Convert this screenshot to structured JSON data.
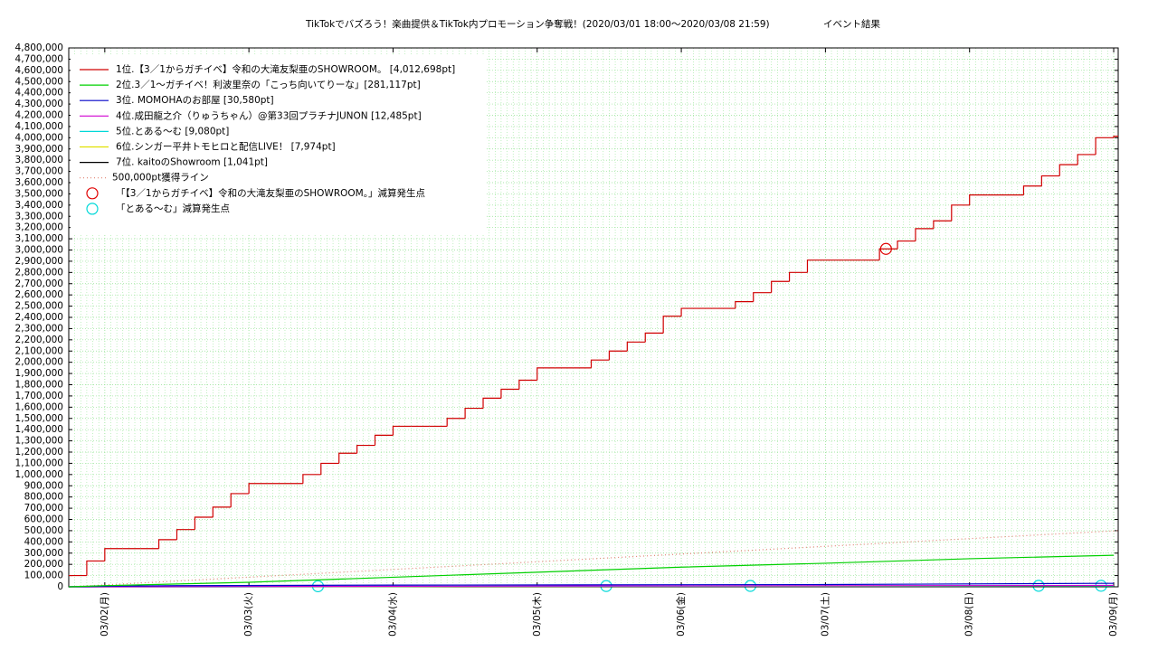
{
  "chart_data": {
    "type": "line",
    "title": "TikTokでバズろう！楽曲提供＆TikTok内プロモーション争奪戦！(2020/03/01 18:00～2020/03/08 21:59)",
    "subtitle": "イベント結果",
    "xlim": [
      "2020-03-01T18:00",
      "2020-03-09T00:45"
    ],
    "xticks": [
      {
        "value": "2020-03-02T00:00",
        "label": "03/02(月)"
      },
      {
        "value": "2020-03-03T00:00",
        "label": "03/03(火)"
      },
      {
        "value": "2020-03-04T00:00",
        "label": "03/04(水)"
      },
      {
        "value": "2020-03-05T00:00",
        "label": "03/05(木)"
      },
      {
        "value": "2020-03-06T00:00",
        "label": "03/06(金)"
      },
      {
        "value": "2020-03-07T00:00",
        "label": "03/07(土)"
      },
      {
        "value": "2020-03-08T00:00",
        "label": "03/08(日)"
      },
      {
        "value": "2020-03-09T00:00",
        "label": "03/09(月)"
      }
    ],
    "ylim": [
      0,
      4800000
    ],
    "yticks": [
      0,
      {
        "value": 100000,
        "label": "100,000"
      },
      {
        "value": 200000,
        "label": "200,000"
      },
      {
        "value": 300000,
        "label": "300,000"
      },
      {
        "value": 400000,
        "label": "400,000"
      },
      {
        "value": 500000,
        "label": "500,000"
      },
      {
        "value": 600000,
        "label": "600,000"
      },
      {
        "value": 700000,
        "label": "700,000"
      },
      {
        "value": 800000,
        "label": "800,000"
      },
      {
        "value": 900000,
        "label": "900,000"
      },
      {
        "value": 1000000,
        "label": "1,000,000"
      },
      {
        "value": 1100000,
        "label": "1,100,000"
      },
      {
        "value": 1200000,
        "label": "1,200,000"
      },
      {
        "value": 1300000,
        "label": "1,300,000"
      },
      {
        "value": 1400000,
        "label": "1,400,000"
      },
      {
        "value": 1500000,
        "label": "1,500,000"
      },
      {
        "value": 1600000,
        "label": "1,600,000"
      },
      {
        "value": 1700000,
        "label": "1,700,000"
      },
      {
        "value": 1800000,
        "label": "1,800,000"
      },
      {
        "value": 1900000,
        "label": "1,900,000"
      },
      {
        "value": 2000000,
        "label": "2,000,000"
      },
      {
        "value": 2100000,
        "label": "2,100,000"
      },
      {
        "value": 2200000,
        "label": "2,200,000"
      },
      {
        "value": 2300000,
        "label": "2,300,000"
      },
      {
        "value": 2400000,
        "label": "2,400,000"
      },
      {
        "value": 2500000,
        "label": "2,500,000"
      },
      {
        "value": 2600000,
        "label": "2,600,000"
      },
      {
        "value": 2700000,
        "label": "2,700,000"
      },
      {
        "value": 2800000,
        "label": "2,800,000"
      },
      {
        "value": 2900000,
        "label": "2,900,000"
      },
      {
        "value": 3000000,
        "label": "3,000,000"
      },
      {
        "value": 3100000,
        "label": "3,100,000"
      },
      {
        "value": 3200000,
        "label": "3,200,000"
      },
      {
        "value": 3300000,
        "label": "3,300,000"
      },
      {
        "value": 3400000,
        "label": "3,400,000"
      },
      {
        "value": 3500000,
        "label": "3,500,000"
      },
      {
        "value": 3600000,
        "label": "3,600,000"
      },
      {
        "value": 3700000,
        "label": "3,700,000"
      },
      {
        "value": 3800000,
        "label": "3,800,000"
      },
      {
        "value": 3900000,
        "label": "3,900,000"
      },
      {
        "value": 4000000,
        "label": "4,000,000"
      },
      {
        "value": 4100000,
        "label": "4,100,000"
      },
      {
        "value": 4200000,
        "label": "4,200,000"
      },
      {
        "value": 4300000,
        "label": "4,300,000"
      },
      {
        "value": 4400000,
        "label": "4,400,000"
      },
      {
        "value": 4500000,
        "label": "4,500,000"
      },
      {
        "value": 4600000,
        "label": "4,600,000"
      },
      {
        "value": 4700000,
        "label": "4,700,000"
      },
      {
        "value": 4800000,
        "label": "4,800,000"
      }
    ],
    "grid": true,
    "x_minor_grid_hours": 1,
    "legend": "upper left",
    "series": [
      {
        "name": "1位.【3／1からガチイベ】令和の大滝友梨亜のSHOWROOM。 [4,012,698pt]",
        "color": "#d00000",
        "step": true,
        "x": [
          "2020-03-01T18:00",
          "2020-03-01T21:00",
          "2020-03-02T00:00",
          "2020-03-02T03:00",
          "2020-03-02T06:00",
          "2020-03-02T09:00",
          "2020-03-02T12:00",
          "2020-03-02T15:00",
          "2020-03-02T18:00",
          "2020-03-02T21:00",
          "2020-03-03T00:00",
          "2020-03-03T03:00",
          "2020-03-03T06:00",
          "2020-03-03T09:00",
          "2020-03-03T12:00",
          "2020-03-03T15:00",
          "2020-03-03T18:00",
          "2020-03-03T21:00",
          "2020-03-04T00:00",
          "2020-03-04T03:00",
          "2020-03-04T06:00",
          "2020-03-04T09:00",
          "2020-03-04T12:00",
          "2020-03-04T15:00",
          "2020-03-04T18:00",
          "2020-03-04T21:00",
          "2020-03-05T00:00",
          "2020-03-05T03:00",
          "2020-03-05T06:00",
          "2020-03-05T09:00",
          "2020-03-05T12:00",
          "2020-03-05T15:00",
          "2020-03-05T18:00",
          "2020-03-05T21:00",
          "2020-03-06T00:00",
          "2020-03-06T03:00",
          "2020-03-06T06:00",
          "2020-03-06T09:00",
          "2020-03-06T12:00",
          "2020-03-06T15:00",
          "2020-03-06T18:00",
          "2020-03-06T21:00",
          "2020-03-07T00:00",
          "2020-03-07T03:00",
          "2020-03-07T06:00",
          "2020-03-07T09:00",
          "2020-03-07T12:00",
          "2020-03-07T15:00",
          "2020-03-07T18:00",
          "2020-03-07T21:00",
          "2020-03-08T00:00",
          "2020-03-08T03:00",
          "2020-03-08T06:00",
          "2020-03-08T09:00",
          "2020-03-08T12:00",
          "2020-03-08T15:00",
          "2020-03-08T18:00",
          "2020-03-08T21:00",
          "2020-03-09T00:00"
        ],
        "values": [
          100000,
          230000,
          340000,
          340000,
          340000,
          420000,
          510000,
          620000,
          710000,
          830000,
          920000,
          920000,
          920000,
          1000000,
          1100000,
          1190000,
          1260000,
          1350000,
          1430000,
          1430000,
          1430000,
          1500000,
          1590000,
          1680000,
          1760000,
          1840000,
          1950000,
          1950000,
          1950000,
          2020000,
          2100000,
          2180000,
          2260000,
          2410000,
          2480000,
          2480000,
          2480000,
          2540000,
          2620000,
          2720000,
          2800000,
          2910000,
          2910000,
          2910000,
          2910000,
          3010000,
          3080000,
          3190000,
          3260000,
          3400000,
          3490000,
          3490000,
          3490000,
          3570000,
          3660000,
          3760000,
          3850000,
          4000000,
          4012698
        ]
      },
      {
        "name": "2位.3／1～ガチイベ！利波里奈の「こっち向いてりーな」[281,117pt]",
        "color": "#00d000",
        "x": [
          "2020-03-01T18:00",
          "2020-03-02T00:00",
          "2020-03-03T00:00",
          "2020-03-04T00:00",
          "2020-03-05T00:00",
          "2020-03-06T00:00",
          "2020-03-07T00:00",
          "2020-03-08T00:00",
          "2020-03-09T00:00"
        ],
        "values": [
          0,
          10000,
          40000,
          85000,
          130000,
          175000,
          210000,
          250000,
          281117
        ]
      },
      {
        "name": "3位. MOMOHAのお部屋 [30,580pt]",
        "color": "#0000c8",
        "x": [
          "2020-03-01T18:00",
          "2020-03-02T00:00",
          "2020-03-02T12:00",
          "2020-03-04T00:00",
          "2020-03-07T00:00",
          "2020-03-08T21:30",
          "2020-03-09T00:00"
        ],
        "values": [
          0,
          5000,
          10000,
          15000,
          20000,
          30580,
          30580
        ]
      },
      {
        "name": "4位.成田龍之介（りゅうちゃん）@第33回プラチナJUNON [12,485pt]",
        "color": "#d000d0",
        "x": [
          "2020-03-01T18:00",
          "2020-03-04T00:00",
          "2020-03-09T00:00"
        ],
        "values": [
          0,
          5000,
          12485
        ]
      },
      {
        "name": "5位.とある〜む [9,080pt]",
        "color": "#00d8d8",
        "x": [
          "2020-03-01T18:00",
          "2020-03-04T00:00",
          "2020-03-09T00:00"
        ],
        "values": [
          0,
          4000,
          9080
        ]
      },
      {
        "name": "6位.シンガー平井トモヒロと配信LIVE！ [7,974pt]",
        "color": "#e0e000",
        "x": [
          "2020-03-01T18:00",
          "2020-03-04T00:00",
          "2020-03-09T00:00"
        ],
        "values": [
          0,
          3000,
          7974
        ]
      },
      {
        "name": "7位. kaitoのShowroom [1,041pt]",
        "color": "#000000",
        "x": [
          "2020-03-01T18:00",
          "2020-03-04T00:00",
          "2020-03-09T00:00"
        ],
        "values": [
          0,
          500,
          1041
        ]
      },
      {
        "name": "500,000pt獲得ライン",
        "color": "#e08070",
        "dash": "1,3",
        "x": [
          "2020-03-01T18:00",
          "2020-03-09T00:45"
        ],
        "values": [
          0,
          500000
        ]
      },
      {
        "name": "「【3／1からガチイベ】令和の大滝友梨亜のSHOWROOM。」減算発生点",
        "color": "#e00000",
        "marker": "circle",
        "x": [
          "2020-03-07T10:05"
        ],
        "values": [
          3010000
        ]
      },
      {
        "name": "「とある〜む」減算発生点",
        "color": "#00d8d8",
        "marker": "circle",
        "x": [
          "2020-03-03T11:30",
          "2020-03-05T11:30",
          "2020-03-06T11:30",
          "2020-03-08T11:30",
          "2020-03-08T21:54"
        ],
        "values": [
          5000,
          7000,
          8000,
          9000,
          9080
        ]
      }
    ]
  }
}
